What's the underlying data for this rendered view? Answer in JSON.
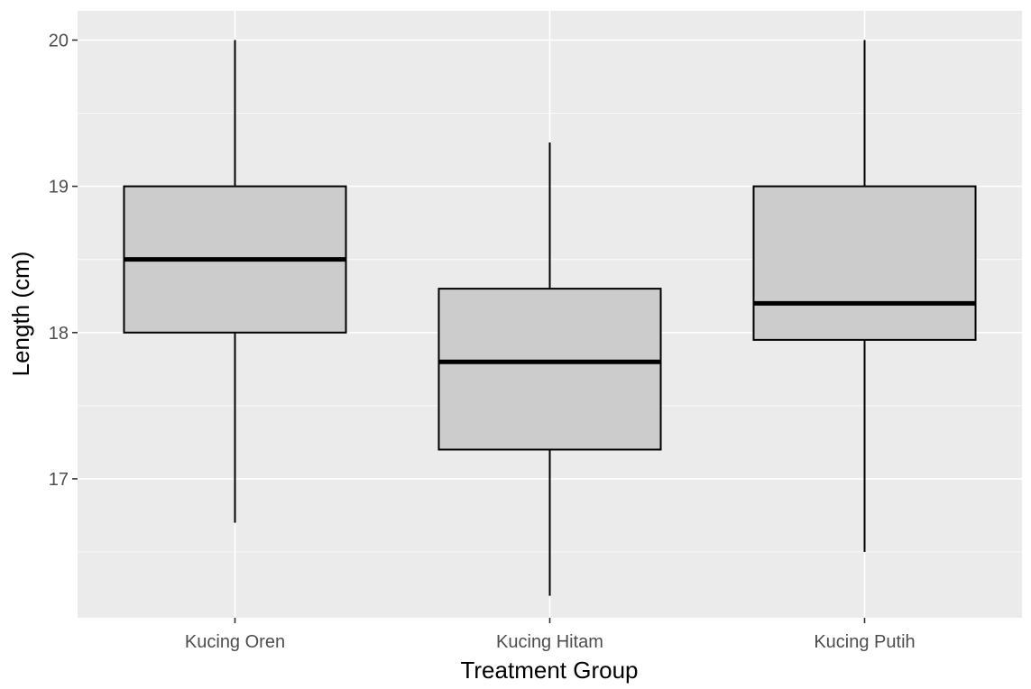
{
  "chart_data": {
    "type": "boxplot",
    "title": "",
    "xlabel": "Treatment Group",
    "ylabel": "Length (cm)",
    "ylim": [
      16.05,
      20.2
    ],
    "yticks": [
      17,
      18,
      19,
      20
    ],
    "grid": true,
    "categories": [
      "Kucing Oren",
      "Kucing Hitam",
      "Kucing Putih"
    ],
    "boxes": [
      {
        "min": 16.7,
        "q1": 18.0,
        "median": 18.5,
        "q3": 19.0,
        "max": 20.0
      },
      {
        "min": 16.2,
        "q1": 17.2,
        "median": 17.8,
        "q3": 18.3,
        "max": 19.3
      },
      {
        "min": 16.5,
        "q1": 17.95,
        "median": 18.2,
        "q3": 19.0,
        "max": 20.0
      }
    ],
    "colors": {
      "panel": "#ebebeb",
      "grid": "#ffffff",
      "box_fill": "#cccccc",
      "line": "#000000"
    }
  }
}
